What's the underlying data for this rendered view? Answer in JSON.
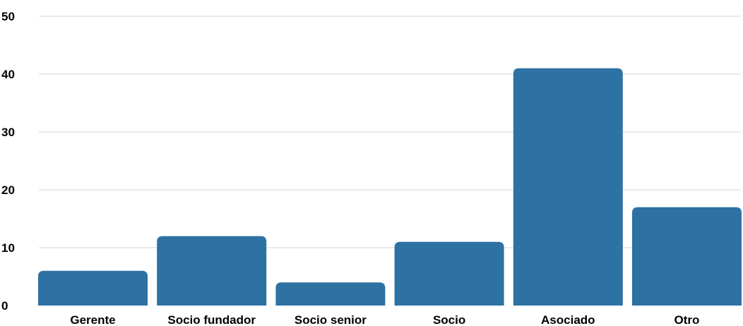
{
  "chart_data": {
    "type": "bar",
    "categories": [
      "Gerente",
      "Socio fundador",
      "Socio senior",
      "Socio",
      "Asociado",
      "Otro"
    ],
    "values": [
      6,
      12,
      4,
      11,
      41,
      17
    ],
    "title": "",
    "xlabel": "",
    "ylabel": "",
    "ylim": [
      0,
      50
    ],
    "yticks": [
      "0",
      "10",
      "20",
      "30",
      "40",
      "50"
    ],
    "grid": true,
    "legend": "none",
    "bar_color": "#2e71a3"
  }
}
